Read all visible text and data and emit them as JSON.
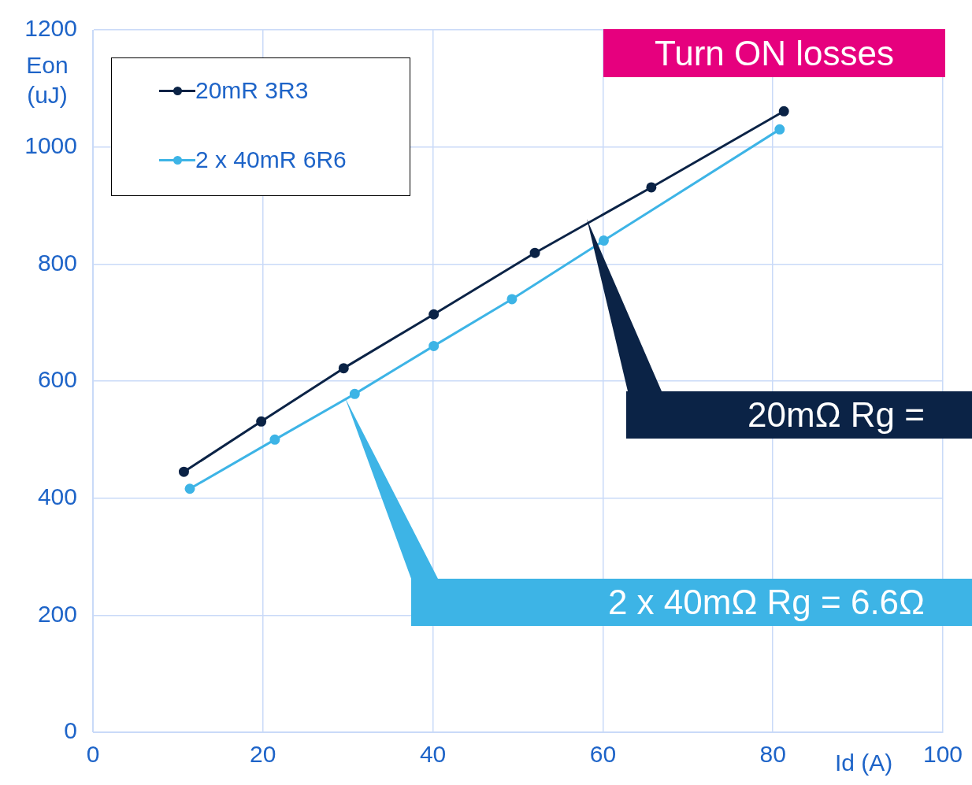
{
  "chart_data": {
    "type": "line",
    "title": "Turn ON losses",
    "xlabel": "Id (A)",
    "ylabel": "Eon (uJ)",
    "xlim": [
      0,
      100
    ],
    "xticks": [
      0,
      20,
      40,
      60,
      80,
      100
    ],
    "ylim": [
      0,
      1200
    ],
    "yticks": [
      0,
      200,
      400,
      600,
      800,
      1000,
      1200
    ],
    "grid": true,
    "legend": "top left",
    "marker": "circle",
    "line_style": "solid",
    "series": [
      {
        "name": "20mR 3R3",
        "color": "#0b2346",
        "x": [
          10.7,
          19.8,
          29.5,
          40.1,
          52.0,
          65.7,
          81.3
        ],
        "values": [
          445,
          531,
          622,
          714,
          819,
          931,
          1061
        ]
      },
      {
        "name": "2 x 40mR 6R6",
        "color": "#3db4e6",
        "x": [
          11.4,
          21.4,
          30.8,
          40.1,
          49.3,
          60.1,
          80.8
        ],
        "values": [
          416,
          500,
          578,
          660,
          740,
          840,
          1030
        ]
      }
    ],
    "annotations": [
      "20mΩ Rg =",
      "2 x 40mΩ Rg = 6.6Ω"
    ]
  }
}
